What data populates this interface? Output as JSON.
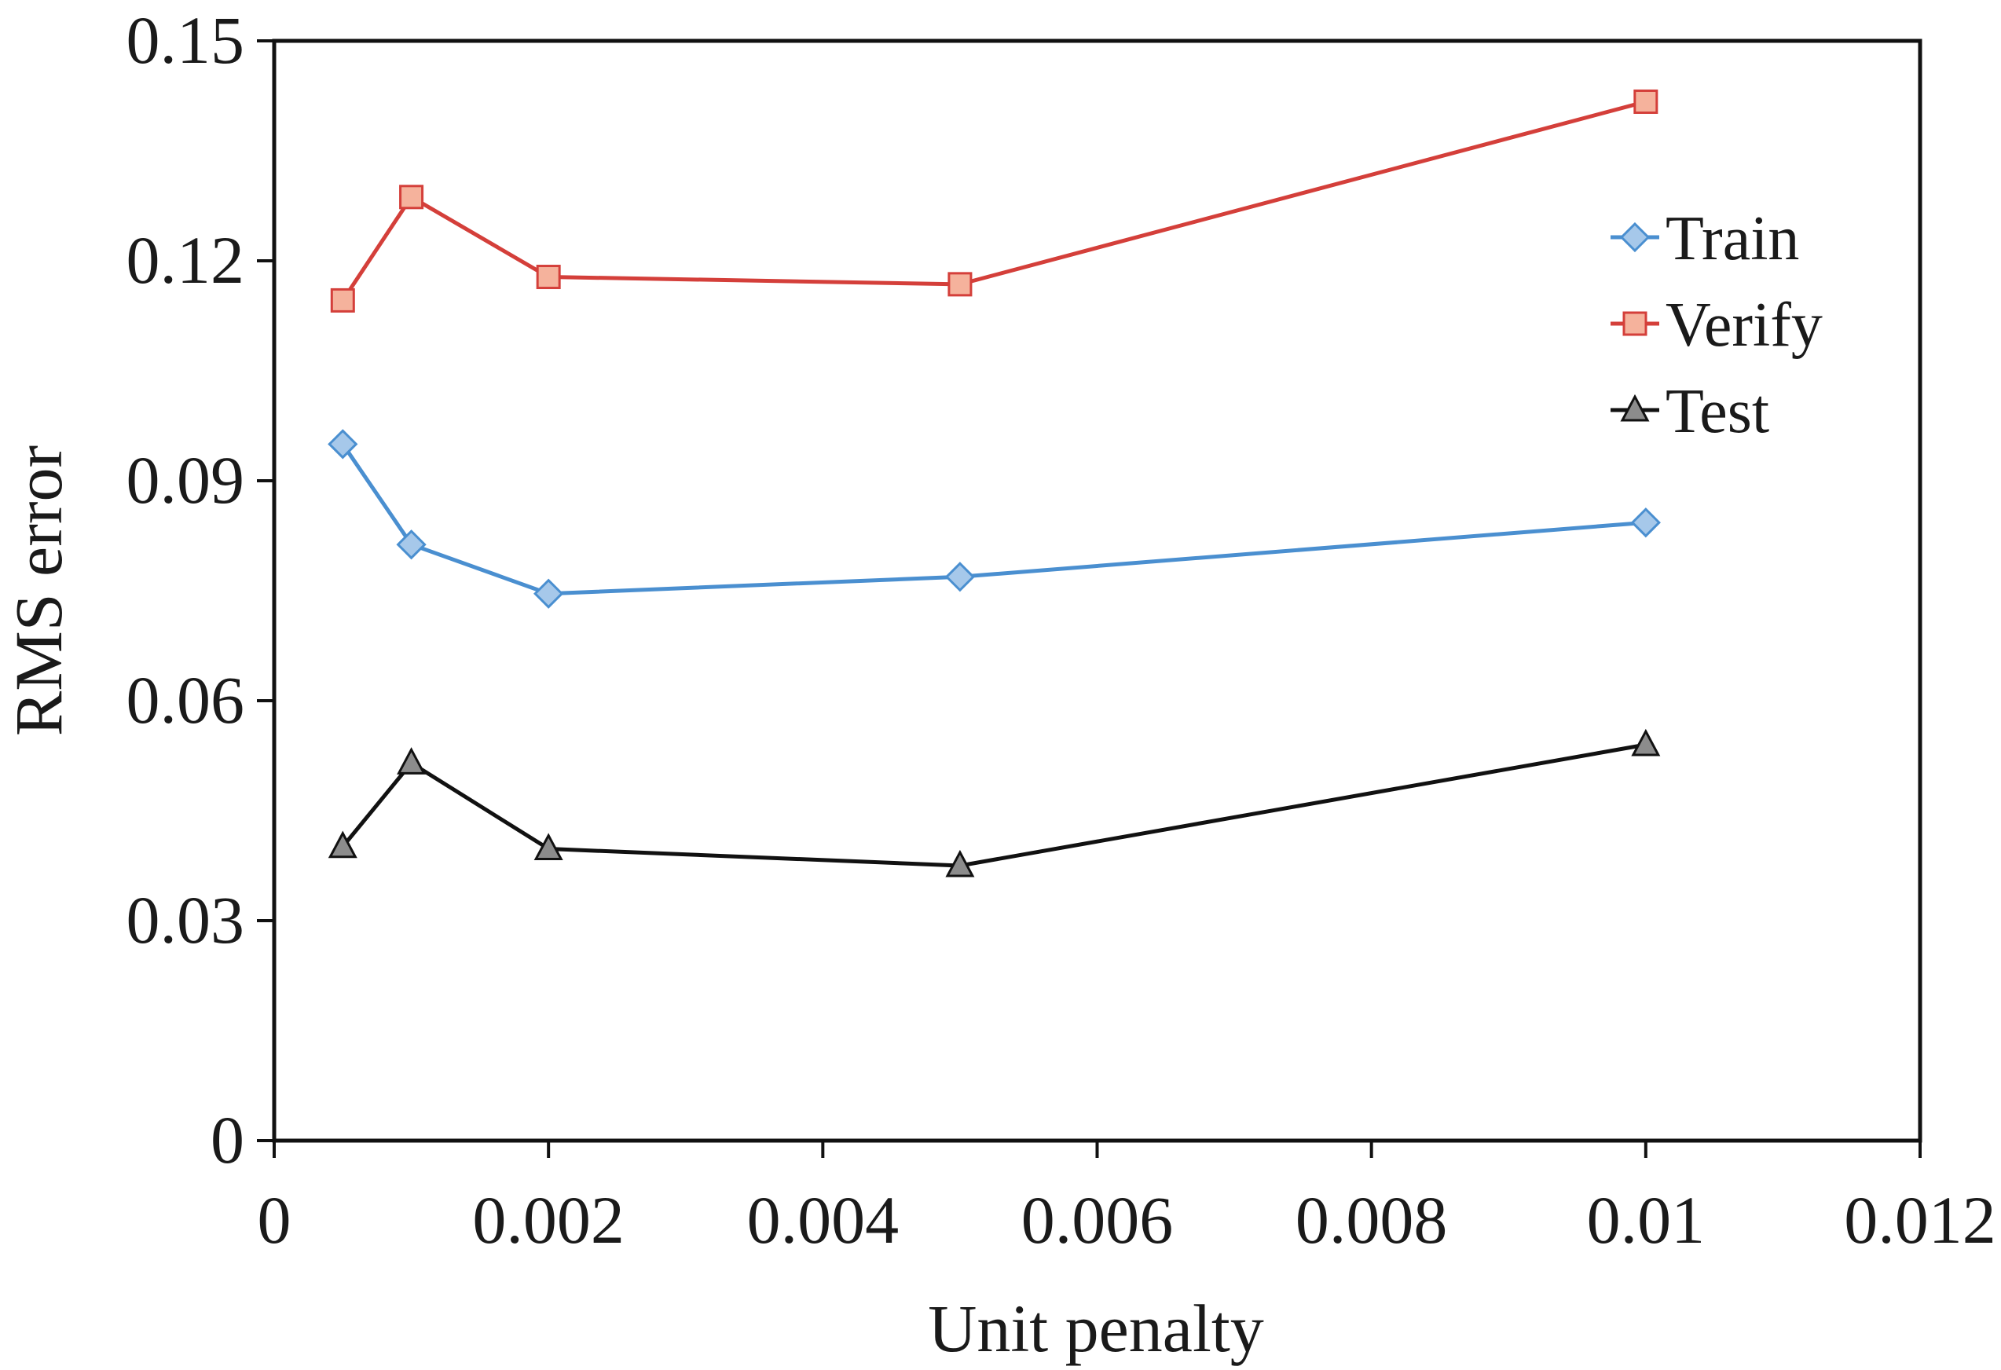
{
  "chart_data": {
    "type": "line",
    "title": "",
    "xlabel": "Unit penalty",
    "ylabel": "RMS error",
    "xlim": [
      0,
      0.012
    ],
    "ylim": [
      0,
      0.15
    ],
    "x_ticks": [
      0,
      0.002,
      0.004,
      0.006,
      0.008,
      0.01,
      0.012
    ],
    "x_tick_labels": [
      "0",
      "0.002",
      "0.004",
      "0.006",
      "0.008",
      "0.01",
      "0.012"
    ],
    "y_ticks": [
      0,
      0.03,
      0.06,
      0.09,
      0.12,
      0.15
    ],
    "y_tick_labels": [
      "0",
      "0.03",
      "0.06",
      "0.09",
      "0.12",
      "0.15"
    ],
    "grid": false,
    "legend_position": "top-right",
    "x": [
      0.0005,
      0.001,
      0.002,
      0.005,
      0.01
    ],
    "series": [
      {
        "name": "Train",
        "marker": "diamond",
        "line_color": "#4a8fd0",
        "marker_fill": "#a6c8ea",
        "marker_stroke": "#4a8fd0",
        "values": [
          0.095,
          0.0813,
          0.0746,
          0.0769,
          0.0843
        ]
      },
      {
        "name": "Verify",
        "marker": "square",
        "line_color": "#d43f3a",
        "marker_fill": "#f5b29c",
        "marker_stroke": "#d43f3a",
        "values": [
          0.1146,
          0.1287,
          0.1178,
          0.1168,
          0.1417
        ]
      },
      {
        "name": "Test",
        "marker": "triangle",
        "line_color": "#111111",
        "marker_fill": "#8c8c8c",
        "marker_stroke": "#111111",
        "values": [
          0.0401,
          0.0515,
          0.0398,
          0.0375,
          0.054
        ]
      }
    ]
  }
}
